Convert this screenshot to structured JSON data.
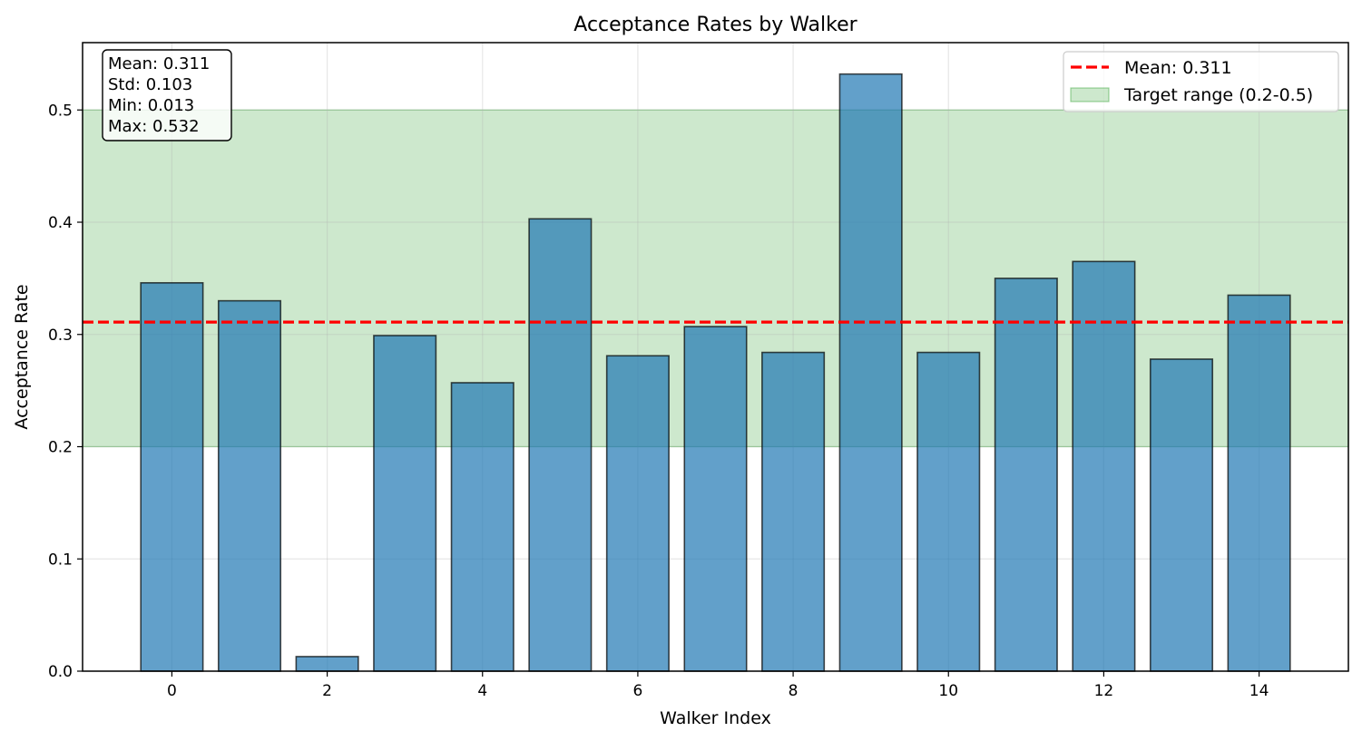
{
  "chart_data": {
    "type": "bar",
    "title": "Acceptance Rates by Walker",
    "xlabel": "Walker Index",
    "ylabel": "Acceptance Rate",
    "categories": [
      0,
      1,
      2,
      3,
      4,
      5,
      6,
      7,
      8,
      9,
      10,
      11,
      12,
      13,
      14
    ],
    "values": [
      0.346,
      0.33,
      0.013,
      0.299,
      0.257,
      0.403,
      0.281,
      0.307,
      0.284,
      0.532,
      0.284,
      0.35,
      0.365,
      0.278,
      0.335
    ],
    "xlim": [
      -1.15,
      15.15
    ],
    "ylim": [
      0,
      0.56
    ],
    "x_ticks": [
      0,
      2,
      4,
      6,
      8,
      10,
      12,
      14
    ],
    "x_tick_labels": [
      "0",
      "2",
      "4",
      "6",
      "8",
      "10",
      "12",
      "14"
    ],
    "y_ticks": [
      0.0,
      0.1,
      0.2,
      0.3,
      0.4,
      0.5
    ],
    "y_tick_labels": [
      "0.0",
      "0.1",
      "0.2",
      "0.3",
      "0.4",
      "0.5"
    ],
    "grid": true,
    "bar_color": "#1f77b4",
    "bar_edge_color": "#000000",
    "mean_line": {
      "value": 0.311,
      "label": "Mean: 0.311",
      "color": "#ff0000"
    },
    "target_range": {
      "min": 0.2,
      "max": 0.5,
      "label": "Target range (0.2-0.5)",
      "color": "#2ca02c"
    },
    "legend_placement": "top-right",
    "stats_box": {
      "placement": "top-left",
      "lines": [
        "Mean: 0.311",
        "Std: 0.103",
        "Min: 0.013",
        "Max: 0.532"
      ]
    }
  }
}
